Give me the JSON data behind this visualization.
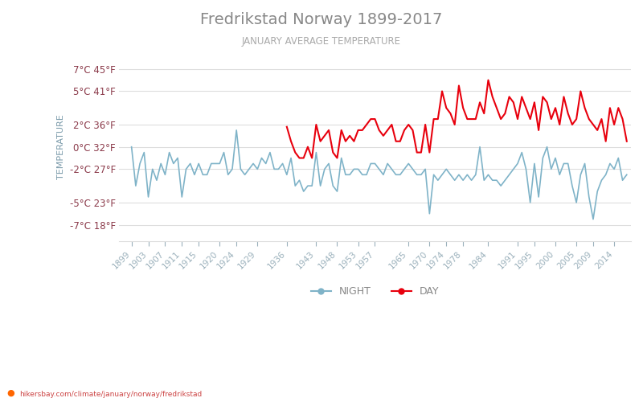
{
  "title": "Fredrikstad Norway 1899-2017",
  "subtitle": "JANUARY AVERAGE TEMPERATURE",
  "ylabel": "TEMPERATURE",
  "watermark": "hikersbay.com/climate/january/norway/fredrikstad",
  "legend_night": "NIGHT",
  "legend_day": "DAY",
  "night_color": "#7fb3c8",
  "day_color": "#e8000d",
  "title_color": "#888888",
  "subtitle_color": "#aaaaaa",
  "ylabel_color": "#7a9aaa",
  "tick_color": "#9ab0bb",
  "grid_color": "#dddddd",
  "background_color": "#ffffff",
  "yticks_c": [
    7,
    5,
    2,
    0,
    -2,
    -5,
    -7
  ],
  "yticks_f": [
    45,
    41,
    36,
    32,
    27,
    23,
    18
  ],
  "ylim": [
    -8.5,
    8.5
  ],
  "night_data": {
    "1899": 0.0,
    "1900": -3.5,
    "1901": -1.5,
    "1902": -0.5,
    "1903": -4.5,
    "1904": -2.0,
    "1905": -3.0,
    "1906": -1.5,
    "1907": -2.5,
    "1908": -0.5,
    "1909": -1.5,
    "1910": -1.0,
    "1911": -4.5,
    "1912": -2.0,
    "1913": -1.5,
    "1914": -2.5,
    "1915": -1.5,
    "1916": -2.5,
    "1917": -2.5,
    "1918": -1.5,
    "1919": -1.5,
    "1920": -1.5,
    "1921": -0.5,
    "1922": -2.5,
    "1923": -2.0,
    "1924": 1.5,
    "1925": -2.0,
    "1926": -2.5,
    "1927": -2.0,
    "1928": -1.5,
    "1929": -2.0,
    "1930": -1.0,
    "1931": -1.5,
    "1932": -0.5,
    "1933": -2.0,
    "1934": -2.0,
    "1935": -1.5,
    "1936": -2.5,
    "1937": -1.0,
    "1938": -3.5,
    "1939": -3.0,
    "1940": -4.0,
    "1941": -3.5,
    "1942": -3.5,
    "1943": -0.5,
    "1944": -3.5,
    "1945": -2.0,
    "1946": -1.5,
    "1947": -3.5,
    "1948": -4.0,
    "1949": -1.0,
    "1950": -2.5,
    "1951": -2.5,
    "1952": -2.0,
    "1953": -2.0,
    "1954": -2.5,
    "1955": -2.5,
    "1956": -1.5,
    "1957": -1.5,
    "1958": -2.0,
    "1959": -2.5,
    "1960": -1.5,
    "1961": -2.0,
    "1962": -2.5,
    "1963": -2.5,
    "1964": -2.0,
    "1965": -1.5,
    "1966": -2.0,
    "1967": -2.5,
    "1968": -2.5,
    "1969": -2.0,
    "1970": -6.0,
    "1971": -2.5,
    "1972": -3.0,
    "1973": -2.5,
    "1974": -2.0,
    "1975": -2.5,
    "1976": -3.0,
    "1977": -2.5,
    "1978": -3.0,
    "1979": -2.5,
    "1980": -3.0,
    "1981": -2.5,
    "1982": 0.0,
    "1983": -3.0,
    "1984": -2.5,
    "1985": -3.0,
    "1986": -3.0,
    "1987": -3.5,
    "1988": -3.0,
    "1989": -2.5,
    "1990": -2.0,
    "1991": -1.5,
    "1992": -0.5,
    "1993": -2.0,
    "1994": -5.0,
    "1995": -1.5,
    "1996": -4.5,
    "1997": -1.0,
    "1998": 0.0,
    "1999": -2.0,
    "2000": -1.0,
    "2001": -2.5,
    "2002": -1.5,
    "2003": -1.5,
    "2004": -3.5,
    "2005": -5.0,
    "2006": -2.5,
    "2007": -1.5,
    "2008": -4.5,
    "2009": -6.5,
    "2010": -4.0,
    "2011": -3.0,
    "2012": -2.5,
    "2013": -1.5,
    "2014": -2.0,
    "2015": -1.0,
    "2016": -3.0,
    "2017": -2.5
  },
  "day_data": {
    "1936": 1.8,
    "1937": 0.5,
    "1938": -0.5,
    "1939": -1.0,
    "1940": -1.0,
    "1941": 0.0,
    "1942": -1.0,
    "1943": 2.0,
    "1944": 0.5,
    "1945": 1.0,
    "1946": 1.5,
    "1947": -0.5,
    "1948": -1.0,
    "1949": 1.5,
    "1950": 0.5,
    "1951": 1.0,
    "1952": 0.5,
    "1953": 1.5,
    "1954": 1.5,
    "1955": 2.0,
    "1956": 2.5,
    "1957": 2.5,
    "1958": 1.5,
    "1959": 1.0,
    "1960": 1.5,
    "1961": 2.0,
    "1962": 0.5,
    "1963": 0.5,
    "1964": 1.5,
    "1965": 2.0,
    "1966": 1.5,
    "1967": -0.5,
    "1968": -0.5,
    "1969": 2.0,
    "1970": -0.5,
    "1971": 2.5,
    "1972": 2.5,
    "1973": 5.0,
    "1974": 3.5,
    "1975": 3.0,
    "1976": 2.0,
    "1977": 5.5,
    "1978": 3.5,
    "1979": 2.5,
    "1980": 2.5,
    "1981": 2.5,
    "1982": 4.0,
    "1983": 3.0,
    "1984": 6.0,
    "1985": 4.5,
    "1986": 3.5,
    "1987": 2.5,
    "1988": 3.0,
    "1989": 4.5,
    "1990": 4.0,
    "1991": 2.5,
    "1992": 4.5,
    "1993": 3.5,
    "1994": 2.5,
    "1995": 4.0,
    "1996": 1.5,
    "1997": 4.5,
    "1998": 4.0,
    "1999": 2.5,
    "2000": 3.5,
    "2001": 2.0,
    "2002": 4.5,
    "2003": 3.0,
    "2004": 2.0,
    "2005": 2.5,
    "2006": 5.0,
    "2007": 3.5,
    "2008": 2.5,
    "2009": 2.0,
    "2010": 1.5,
    "2011": 2.5,
    "2012": 0.5,
    "2013": 3.5,
    "2014": 2.0,
    "2015": 3.5,
    "2016": 2.5,
    "2017": 0.5
  },
  "xtick_years": [
    1899,
    1903,
    1907,
    1911,
    1915,
    1920,
    1924,
    1929,
    1936,
    1943,
    1948,
    1953,
    1957,
    1965,
    1970,
    1974,
    1978,
    1984,
    1991,
    1995,
    2000,
    2005,
    2009,
    2014
  ]
}
